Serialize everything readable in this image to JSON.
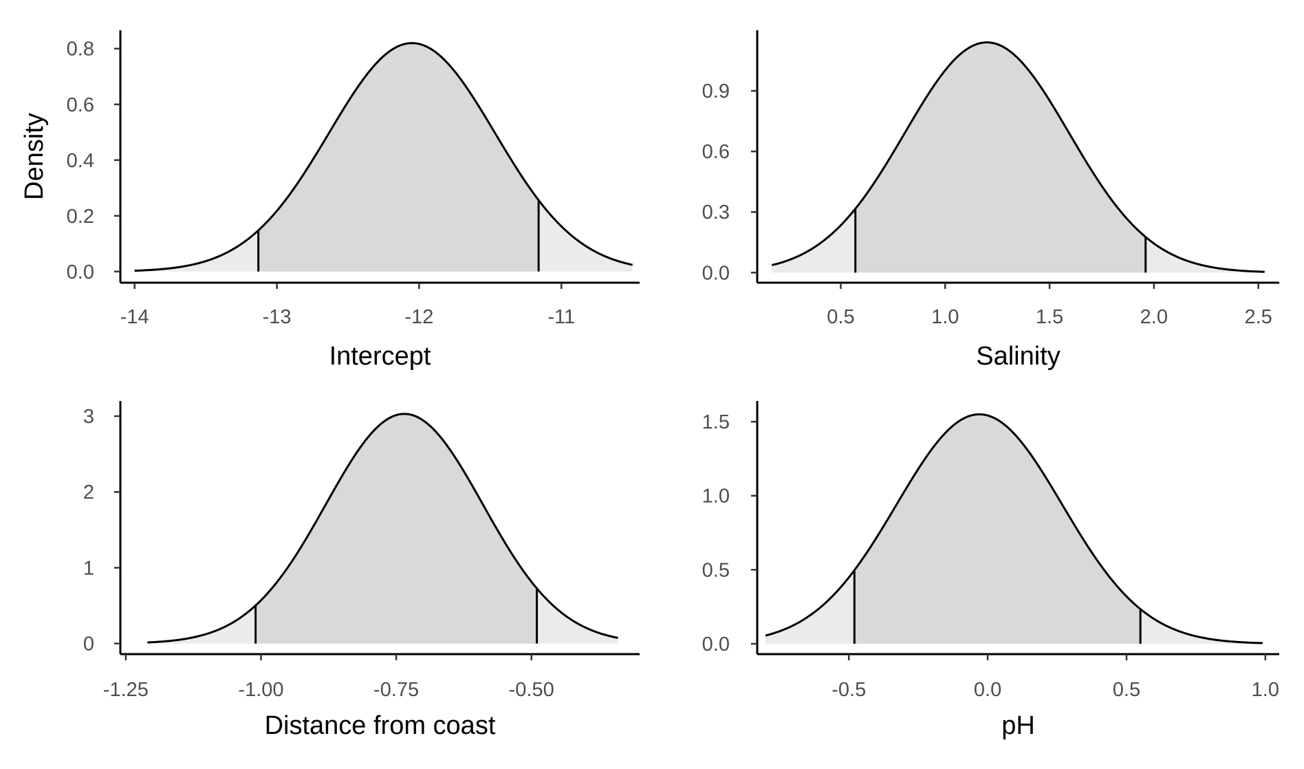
{
  "chart_data": [
    {
      "type": "area",
      "xlabel": "Intercept",
      "ylabel": "Density",
      "x_ticks": [
        -14,
        -13,
        -12,
        -11
      ],
      "x_tick_labels": [
        "-14",
        "-13",
        "-12",
        "-11"
      ],
      "xlim": [
        -14.1,
        -10.45
      ],
      "y_ticks": [
        0.0,
        0.2,
        0.4,
        0.6,
        0.8
      ],
      "y_tick_labels": [
        "0.0",
        "0.2",
        "0.4",
        "0.6",
        "0.8"
      ],
      "ylim": [
        -0.04,
        0.866
      ],
      "curve_x_range": [
        -14.0,
        -10.5
      ],
      "mean": -12.05,
      "peak_density": 0.82,
      "interval": [
        -13.13,
        -11.16
      ],
      "grid": false,
      "fill_inner": "#d9d9d9",
      "fill_tail": "#ebebeb"
    },
    {
      "type": "area",
      "xlabel": "Salinity",
      "ylabel": "",
      "x_ticks": [
        0.5,
        1.0,
        1.5,
        2.0,
        2.5
      ],
      "x_tick_labels": [
        "0.5",
        "1.0",
        "1.5",
        "2.0",
        "2.5"
      ],
      "xlim": [
        0.1,
        2.6
      ],
      "y_ticks": [
        0.0,
        0.3,
        0.6,
        0.9
      ],
      "y_tick_labels": [
        "0.0",
        "0.3",
        "0.6",
        "0.9"
      ],
      "ylim": [
        -0.05,
        1.2
      ],
      "curve_x_range": [
        0.17,
        2.53
      ],
      "mean": 1.2,
      "peak_density": 1.14,
      "interval": [
        0.57,
        1.96
      ],
      "grid": false,
      "fill_inner": "#d9d9d9",
      "fill_tail": "#ebebeb"
    },
    {
      "type": "area",
      "xlabel": "Distance from coast",
      "ylabel": "",
      "x_ticks": [
        -1.25,
        -1.0,
        -0.75,
        -0.5
      ],
      "x_tick_labels": [
        "-1.25",
        "-1.00",
        "-0.75",
        "-0.50"
      ],
      "xlim": [
        -1.26,
        -0.3
      ],
      "y_ticks": [
        0,
        1,
        2,
        3
      ],
      "y_tick_labels": [
        "0",
        "1",
        "2",
        "3"
      ],
      "ylim": [
        -0.14,
        3.2
      ],
      "curve_x_range": [
        -1.21,
        -0.34
      ],
      "mean": -0.735,
      "peak_density": 3.03,
      "interval": [
        -1.01,
        -0.49
      ],
      "grid": false,
      "fill_inner": "#d9d9d9",
      "fill_tail": "#ebebeb"
    },
    {
      "type": "area",
      "xlabel": "pH",
      "ylabel": "",
      "x_ticks": [
        -0.5,
        0.0,
        0.5,
        1.0
      ],
      "x_tick_labels": [
        "-0.5",
        "0.0",
        "0.5",
        "1.0"
      ],
      "xlim": [
        -0.83,
        1.05
      ],
      "y_ticks": [
        0.0,
        0.5,
        1.0,
        1.5
      ],
      "y_tick_labels": [
        "0.0",
        "0.5",
        "1.0",
        "1.5"
      ],
      "ylim": [
        -0.07,
        1.64
      ],
      "curve_x_range": [
        -0.8,
        0.99
      ],
      "mean": -0.03,
      "peak_density": 1.55,
      "interval": [
        -0.48,
        0.55
      ],
      "grid": false,
      "fill_inner": "#d9d9d9",
      "fill_tail": "#ebebeb"
    }
  ]
}
